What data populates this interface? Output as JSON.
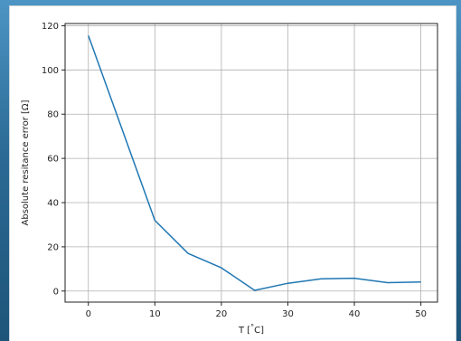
{
  "chart_data": {
    "type": "line",
    "title": "",
    "xlabel": "T [$^{\\circ}$C]",
    "ylabel": "Absolute resitance error [Ω]",
    "xlim": [
      -3.5,
      52.5
    ],
    "ylim": [
      -5,
      121
    ],
    "xticks": [
      0,
      10,
      20,
      30,
      40,
      50
    ],
    "yticks": [
      0,
      20,
      40,
      60,
      80,
      100,
      120
    ],
    "xtick_labels": [
      "0",
      "10",
      "20",
      "30",
      "40",
      "50"
    ],
    "ytick_labels": [
      "0",
      "20",
      "40",
      "60",
      "80",
      "100",
      "120"
    ],
    "grid": true,
    "series": [
      {
        "color": "#1f77b4",
        "x": [
          0,
          10,
          15,
          20,
          25,
          30,
          35,
          40,
          45,
          50
        ],
        "y": [
          115.5,
          32,
          17,
          10.5,
          0.3,
          3.5,
          5.5,
          5.8,
          3.8,
          4.1
        ]
      }
    ]
  },
  "labels": {
    "xlabel_text": "T [",
    "xlabel_degree": "°",
    "xlabel_unit": "C]",
    "ylabel_text": "Absolute resitance error [Ω]"
  }
}
